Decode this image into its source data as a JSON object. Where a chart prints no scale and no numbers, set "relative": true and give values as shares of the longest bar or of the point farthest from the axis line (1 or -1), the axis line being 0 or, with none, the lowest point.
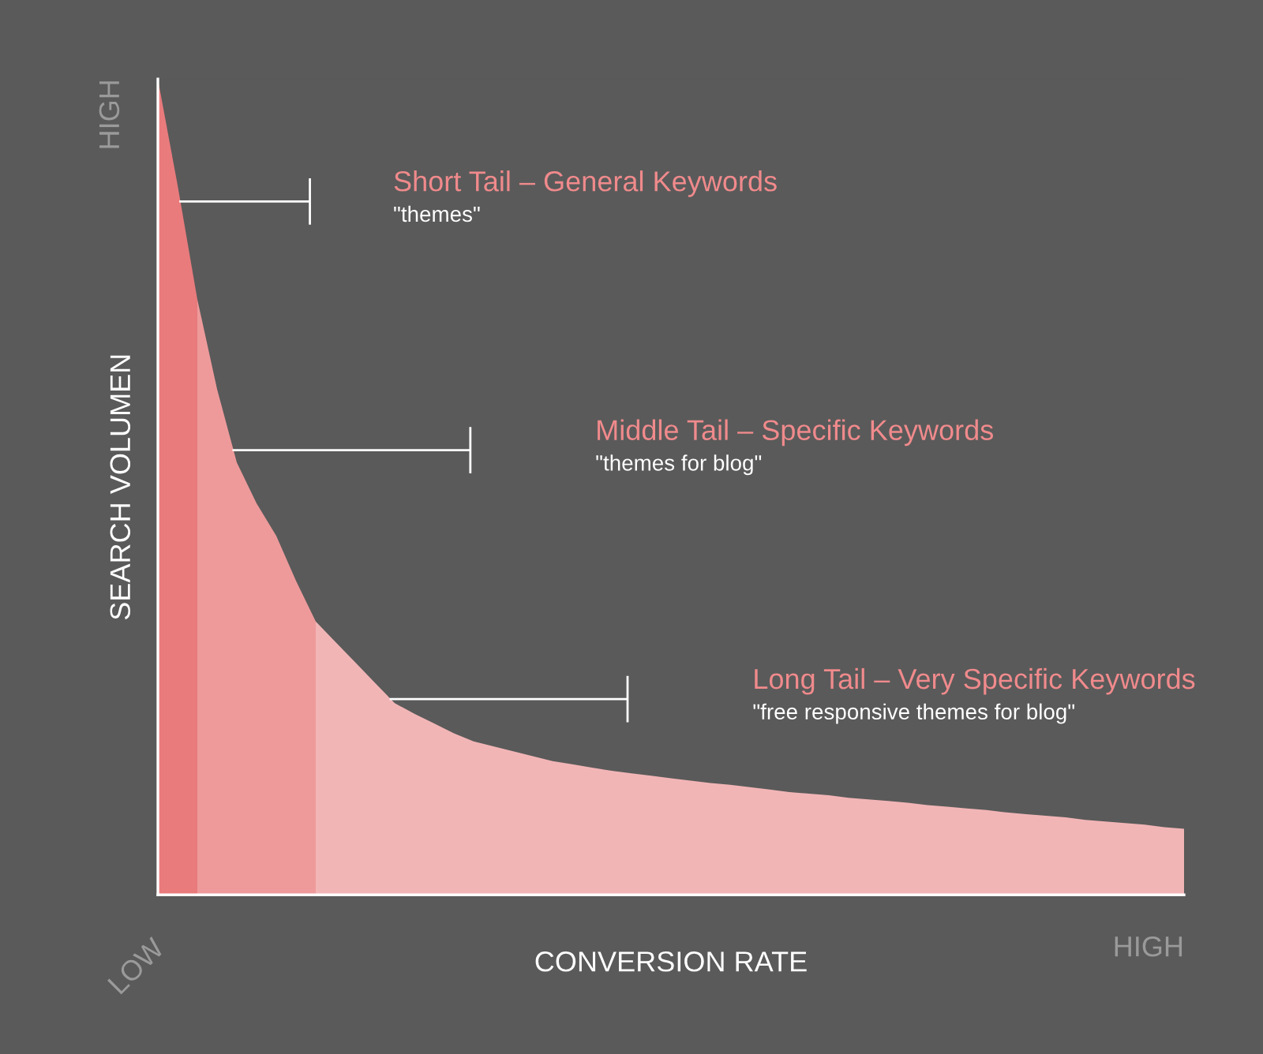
{
  "chart_data": {
    "type": "area",
    "relative": true,
    "xlabel": "CONVERSION RATE",
    "ylabel": "SEARCH VOLUMEN",
    "categories": [
      null,
      null,
      null,
      null,
      null,
      null,
      null,
      null,
      null,
      null,
      null,
      null,
      null,
      null,
      null,
      null,
      null,
      null,
      null,
      null,
      null,
      null,
      null,
      null,
      null,
      null,
      null,
      null,
      null,
      null,
      null,
      null,
      null,
      null,
      null,
      null,
      null,
      null,
      null,
      null,
      null,
      null,
      null,
      null,
      null,
      null,
      null,
      null,
      null,
      null,
      null,
      null,
      null
    ],
    "series": [
      {
        "color": "#e97b7d",
        "values": [
          1.0,
          0.87,
          0.73,
          null,
          null,
          null,
          null,
          null,
          null,
          null,
          null,
          null,
          null,
          null,
          null,
          null,
          null,
          null,
          null,
          null,
          null,
          null,
          null,
          null,
          null,
          null,
          null,
          null,
          null,
          null,
          null,
          null,
          null,
          null,
          null,
          null,
          null,
          null,
          null,
          null,
          null,
          null,
          null,
          null,
          null,
          null,
          null,
          null,
          null,
          null,
          null,
          null,
          null
        ]
      },
      {
        "color": "#ee9a9b",
        "values": [
          null,
          null,
          0.73,
          0.62,
          0.53,
          0.48,
          0.44,
          0.385,
          0.335,
          null,
          null,
          null,
          null,
          null,
          null,
          null,
          null,
          null,
          null,
          null,
          null,
          null,
          null,
          null,
          null,
          null,
          null,
          null,
          null,
          null,
          null,
          null,
          null,
          null,
          null,
          null,
          null,
          null,
          null,
          null,
          null,
          null,
          null,
          null,
          null,
          null,
          null,
          null,
          null,
          null,
          null,
          null,
          null
        ]
      },
      {
        "color": "#f2b5b6",
        "values": [
          null,
          null,
          null,
          null,
          null,
          null,
          null,
          null,
          0.335,
          0.31,
          0.285,
          0.26,
          0.235,
          0.222,
          0.21,
          0.198,
          0.188,
          0.182,
          0.176,
          0.17,
          0.164,
          0.16,
          0.156,
          0.152,
          0.149,
          0.146,
          0.143,
          0.14,
          0.137,
          0.135,
          0.132,
          0.129,
          0.126,
          0.124,
          0.122,
          0.119,
          0.117,
          0.115,
          0.113,
          0.11,
          0.108,
          0.106,
          0.104,
          0.101,
          0.099,
          0.097,
          0.095,
          0.092,
          0.09,
          0.088,
          0.086,
          0.083,
          0.081
        ]
      }
    ],
    "annotations": [
      "HIGH",
      "LOW",
      "HIGH",
      "Short Tail – General Keywords\n\"themes\"",
      "Middle Tail – Specific Keywords\n\"themes for blog\"",
      "Long Tail – Very Specific Keywords\n\"free responsive themes for blog\""
    ],
    "grid": false
  }
}
